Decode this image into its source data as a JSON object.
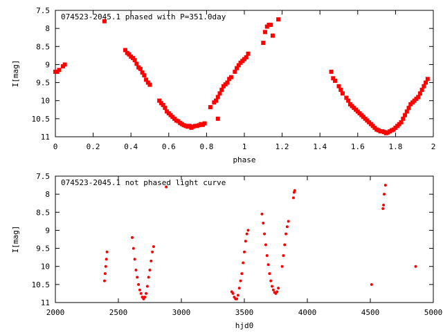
{
  "chart_data": [
    {
      "type": "scatter",
      "title": "074523-2045.1 phased with P=351.0day",
      "xlabel": "phase",
      "ylabel": "I[mag]",
      "xlim": [
        0,
        2
      ],
      "ylim": [
        11,
        7.5
      ],
      "y_inverted": true,
      "xticks": [
        0,
        0.2,
        0.4,
        0.6,
        0.8,
        1,
        1.2,
        1.4,
        1.6,
        1.8,
        2
      ],
      "xtick_labels": [
        "0",
        "0.2",
        "0.4",
        "0.6",
        "0.8",
        "1",
        "1.2",
        "1.4",
        "1.6",
        "1.8",
        "2"
      ],
      "yticks": [
        7.5,
        8,
        8.5,
        9,
        9.5,
        10,
        10.5,
        11
      ],
      "ytick_labels": [
        "7.5",
        "8",
        "8.5",
        "9",
        "9.5",
        "10",
        "10.5",
        "11"
      ],
      "grid": false,
      "color": "#ff0000",
      "marker": "square",
      "points": [
        [
          0.0,
          9.2
        ],
        [
          0.01,
          9.2
        ],
        [
          0.02,
          9.15
        ],
        [
          0.04,
          9.05
        ],
        [
          0.05,
          9.0
        ],
        [
          0.26,
          7.8
        ],
        [
          0.37,
          8.6
        ],
        [
          0.38,
          8.68
        ],
        [
          0.39,
          8.72
        ],
        [
          0.4,
          8.78
        ],
        [
          0.41,
          8.82
        ],
        [
          0.42,
          8.88
        ],
        [
          0.43,
          8.98
        ],
        [
          0.44,
          9.08
        ],
        [
          0.45,
          9.12
        ],
        [
          0.46,
          9.22
        ],
        [
          0.47,
          9.3
        ],
        [
          0.48,
          9.42
        ],
        [
          0.49,
          9.5
        ],
        [
          0.5,
          9.56
        ],
        [
          0.55,
          10.0
        ],
        [
          0.56,
          10.07
        ],
        [
          0.57,
          10.12
        ],
        [
          0.58,
          10.2
        ],
        [
          0.59,
          10.3
        ],
        [
          0.6,
          10.35
        ],
        [
          0.61,
          10.4
        ],
        [
          0.62,
          10.45
        ],
        [
          0.63,
          10.5
        ],
        [
          0.64,
          10.55
        ],
        [
          0.65,
          10.57
        ],
        [
          0.66,
          10.62
        ],
        [
          0.67,
          10.65
        ],
        [
          0.68,
          10.68
        ],
        [
          0.69,
          10.7
        ],
        [
          0.7,
          10.72
        ],
        [
          0.71,
          10.7
        ],
        [
          0.72,
          10.75
        ],
        [
          0.73,
          10.72
        ],
        [
          0.74,
          10.7
        ],
        [
          0.75,
          10.7
        ],
        [
          0.76,
          10.68
        ],
        [
          0.77,
          10.65
        ],
        [
          0.78,
          10.67
        ],
        [
          0.79,
          10.63
        ],
        [
          0.82,
          10.18
        ],
        [
          0.84,
          10.05
        ],
        [
          0.85,
          10.0
        ],
        [
          0.86,
          9.9
        ],
        [
          0.86,
          10.5
        ],
        [
          0.87,
          9.8
        ],
        [
          0.88,
          9.7
        ],
        [
          0.89,
          9.6
        ],
        [
          0.9,
          9.55
        ],
        [
          0.91,
          9.5
        ],
        [
          0.92,
          9.4
        ],
        [
          0.93,
          9.35
        ],
        [
          0.95,
          9.2
        ],
        [
          0.96,
          9.1
        ],
        [
          0.97,
          9.02
        ],
        [
          0.98,
          8.95
        ],
        [
          0.99,
          8.9
        ],
        [
          1.0,
          8.85
        ],
        [
          1.01,
          8.8
        ],
        [
          1.02,
          8.7
        ],
        [
          1.1,
          8.4
        ],
        [
          1.11,
          8.1
        ],
        [
          1.12,
          7.95
        ],
        [
          1.13,
          7.9
        ],
        [
          1.14,
          7.9
        ],
        [
          1.15,
          8.2
        ],
        [
          1.18,
          7.75
        ],
        [
          1.46,
          9.2
        ],
        [
          1.47,
          9.38
        ],
        [
          1.48,
          9.45
        ],
        [
          1.5,
          9.6
        ],
        [
          1.51,
          9.7
        ],
        [
          1.52,
          9.8
        ],
        [
          1.54,
          9.92
        ],
        [
          1.55,
          10.0
        ],
        [
          1.56,
          10.1
        ],
        [
          1.57,
          10.15
        ],
        [
          1.58,
          10.2
        ],
        [
          1.59,
          10.25
        ],
        [
          1.6,
          10.3
        ],
        [
          1.61,
          10.35
        ],
        [
          1.62,
          10.4
        ],
        [
          1.63,
          10.45
        ],
        [
          1.64,
          10.5
        ],
        [
          1.65,
          10.55
        ],
        [
          1.66,
          10.6
        ],
        [
          1.67,
          10.65
        ],
        [
          1.68,
          10.7
        ],
        [
          1.69,
          10.75
        ],
        [
          1.7,
          10.8
        ],
        [
          1.71,
          10.82
        ],
        [
          1.72,
          10.85
        ],
        [
          1.73,
          10.85
        ],
        [
          1.74,
          10.87
        ],
        [
          1.75,
          10.9
        ],
        [
          1.76,
          10.88
        ],
        [
          1.77,
          10.85
        ],
        [
          1.78,
          10.82
        ],
        [
          1.79,
          10.8
        ],
        [
          1.8,
          10.75
        ],
        [
          1.81,
          10.7
        ],
        [
          1.82,
          10.65
        ],
        [
          1.83,
          10.6
        ],
        [
          1.84,
          10.5
        ],
        [
          1.85,
          10.4
        ],
        [
          1.86,
          10.3
        ],
        [
          1.87,
          10.2
        ],
        [
          1.88,
          10.1
        ],
        [
          1.89,
          10.05
        ],
        [
          1.9,
          10.0
        ],
        [
          1.91,
          9.95
        ],
        [
          1.92,
          9.9
        ],
        [
          1.93,
          9.8
        ],
        [
          1.94,
          9.7
        ],
        [
          1.95,
          9.6
        ],
        [
          1.96,
          9.5
        ],
        [
          1.97,
          9.4
        ]
      ]
    },
    {
      "type": "scatter",
      "title": "074523-2045.1 not phased light curve",
      "xlabel": "hjd0",
      "ylabel": "I[mag]",
      "xlim": [
        2000,
        5000
      ],
      "ylim": [
        11,
        7.5
      ],
      "y_inverted": true,
      "xticks": [
        2000,
        2500,
        3000,
        3500,
        4000,
        4500,
        5000
      ],
      "xtick_labels": [
        "2000",
        "2500",
        "3000",
        "3500",
        "4000",
        "4500",
        "5000"
      ],
      "yticks": [
        7.5,
        8,
        8.5,
        9,
        9.5,
        10,
        10.5,
        11
      ],
      "ytick_labels": [
        "7.5",
        "8",
        "8.5",
        "9",
        "9.5",
        "10",
        "10.5",
        "11"
      ],
      "grid": false,
      "color": "#ff0000",
      "marker": "dot",
      "points": [
        [
          2390,
          10.4
        ],
        [
          2395,
          10.2
        ],
        [
          2400,
          10.0
        ],
        [
          2405,
          9.8
        ],
        [
          2410,
          9.6
        ],
        [
          2610,
          9.2
        ],
        [
          2620,
          9.5
        ],
        [
          2630,
          9.8
        ],
        [
          2640,
          10.1
        ],
        [
          2650,
          10.3
        ],
        [
          2660,
          10.5
        ],
        [
          2670,
          10.65
        ],
        [
          2680,
          10.75
        ],
        [
          2690,
          10.85
        ],
        [
          2700,
          10.9
        ],
        [
          2710,
          10.85
        ],
        [
          2720,
          10.75
        ],
        [
          2730,
          10.55
        ],
        [
          2740,
          10.3
        ],
        [
          2750,
          10.1
        ],
        [
          2760,
          9.85
        ],
        [
          2770,
          9.6
        ],
        [
          2780,
          9.45
        ],
        [
          2880,
          7.8
        ],
        [
          3400,
          10.7
        ],
        [
          3410,
          10.75
        ],
        [
          3420,
          10.85
        ],
        [
          3430,
          10.9
        ],
        [
          3440,
          10.9
        ],
        [
          3450,
          10.8
        ],
        [
          3460,
          10.6
        ],
        [
          3470,
          10.4
        ],
        [
          3480,
          10.2
        ],
        [
          3490,
          9.9
        ],
        [
          3500,
          9.6
        ],
        [
          3510,
          9.3
        ],
        [
          3520,
          9.1
        ],
        [
          3530,
          9.0
        ],
        [
          3640,
          8.55
        ],
        [
          3650,
          8.8
        ],
        [
          3660,
          9.1
        ],
        [
          3670,
          9.4
        ],
        [
          3680,
          9.7
        ],
        [
          3690,
          9.95
        ],
        [
          3700,
          10.2
        ],
        [
          3710,
          10.4
        ],
        [
          3720,
          10.55
        ],
        [
          3730,
          10.65
        ],
        [
          3740,
          10.72
        ],
        [
          3750,
          10.75
        ],
        [
          3760,
          10.7
        ],
        [
          3770,
          10.6
        ],
        [
          3800,
          10.0
        ],
        [
          3810,
          9.7
        ],
        [
          3820,
          9.4
        ],
        [
          3830,
          9.1
        ],
        [
          3840,
          8.9
        ],
        [
          3850,
          8.75
        ],
        [
          3890,
          8.1
        ],
        [
          3895,
          7.95
        ],
        [
          3900,
          7.9
        ],
        [
          4510,
          10.5
        ],
        [
          4600,
          8.4
        ],
        [
          4605,
          8.3
        ],
        [
          4610,
          8.0
        ],
        [
          4620,
          7.75
        ],
        [
          4860,
          10.0
        ]
      ]
    }
  ]
}
